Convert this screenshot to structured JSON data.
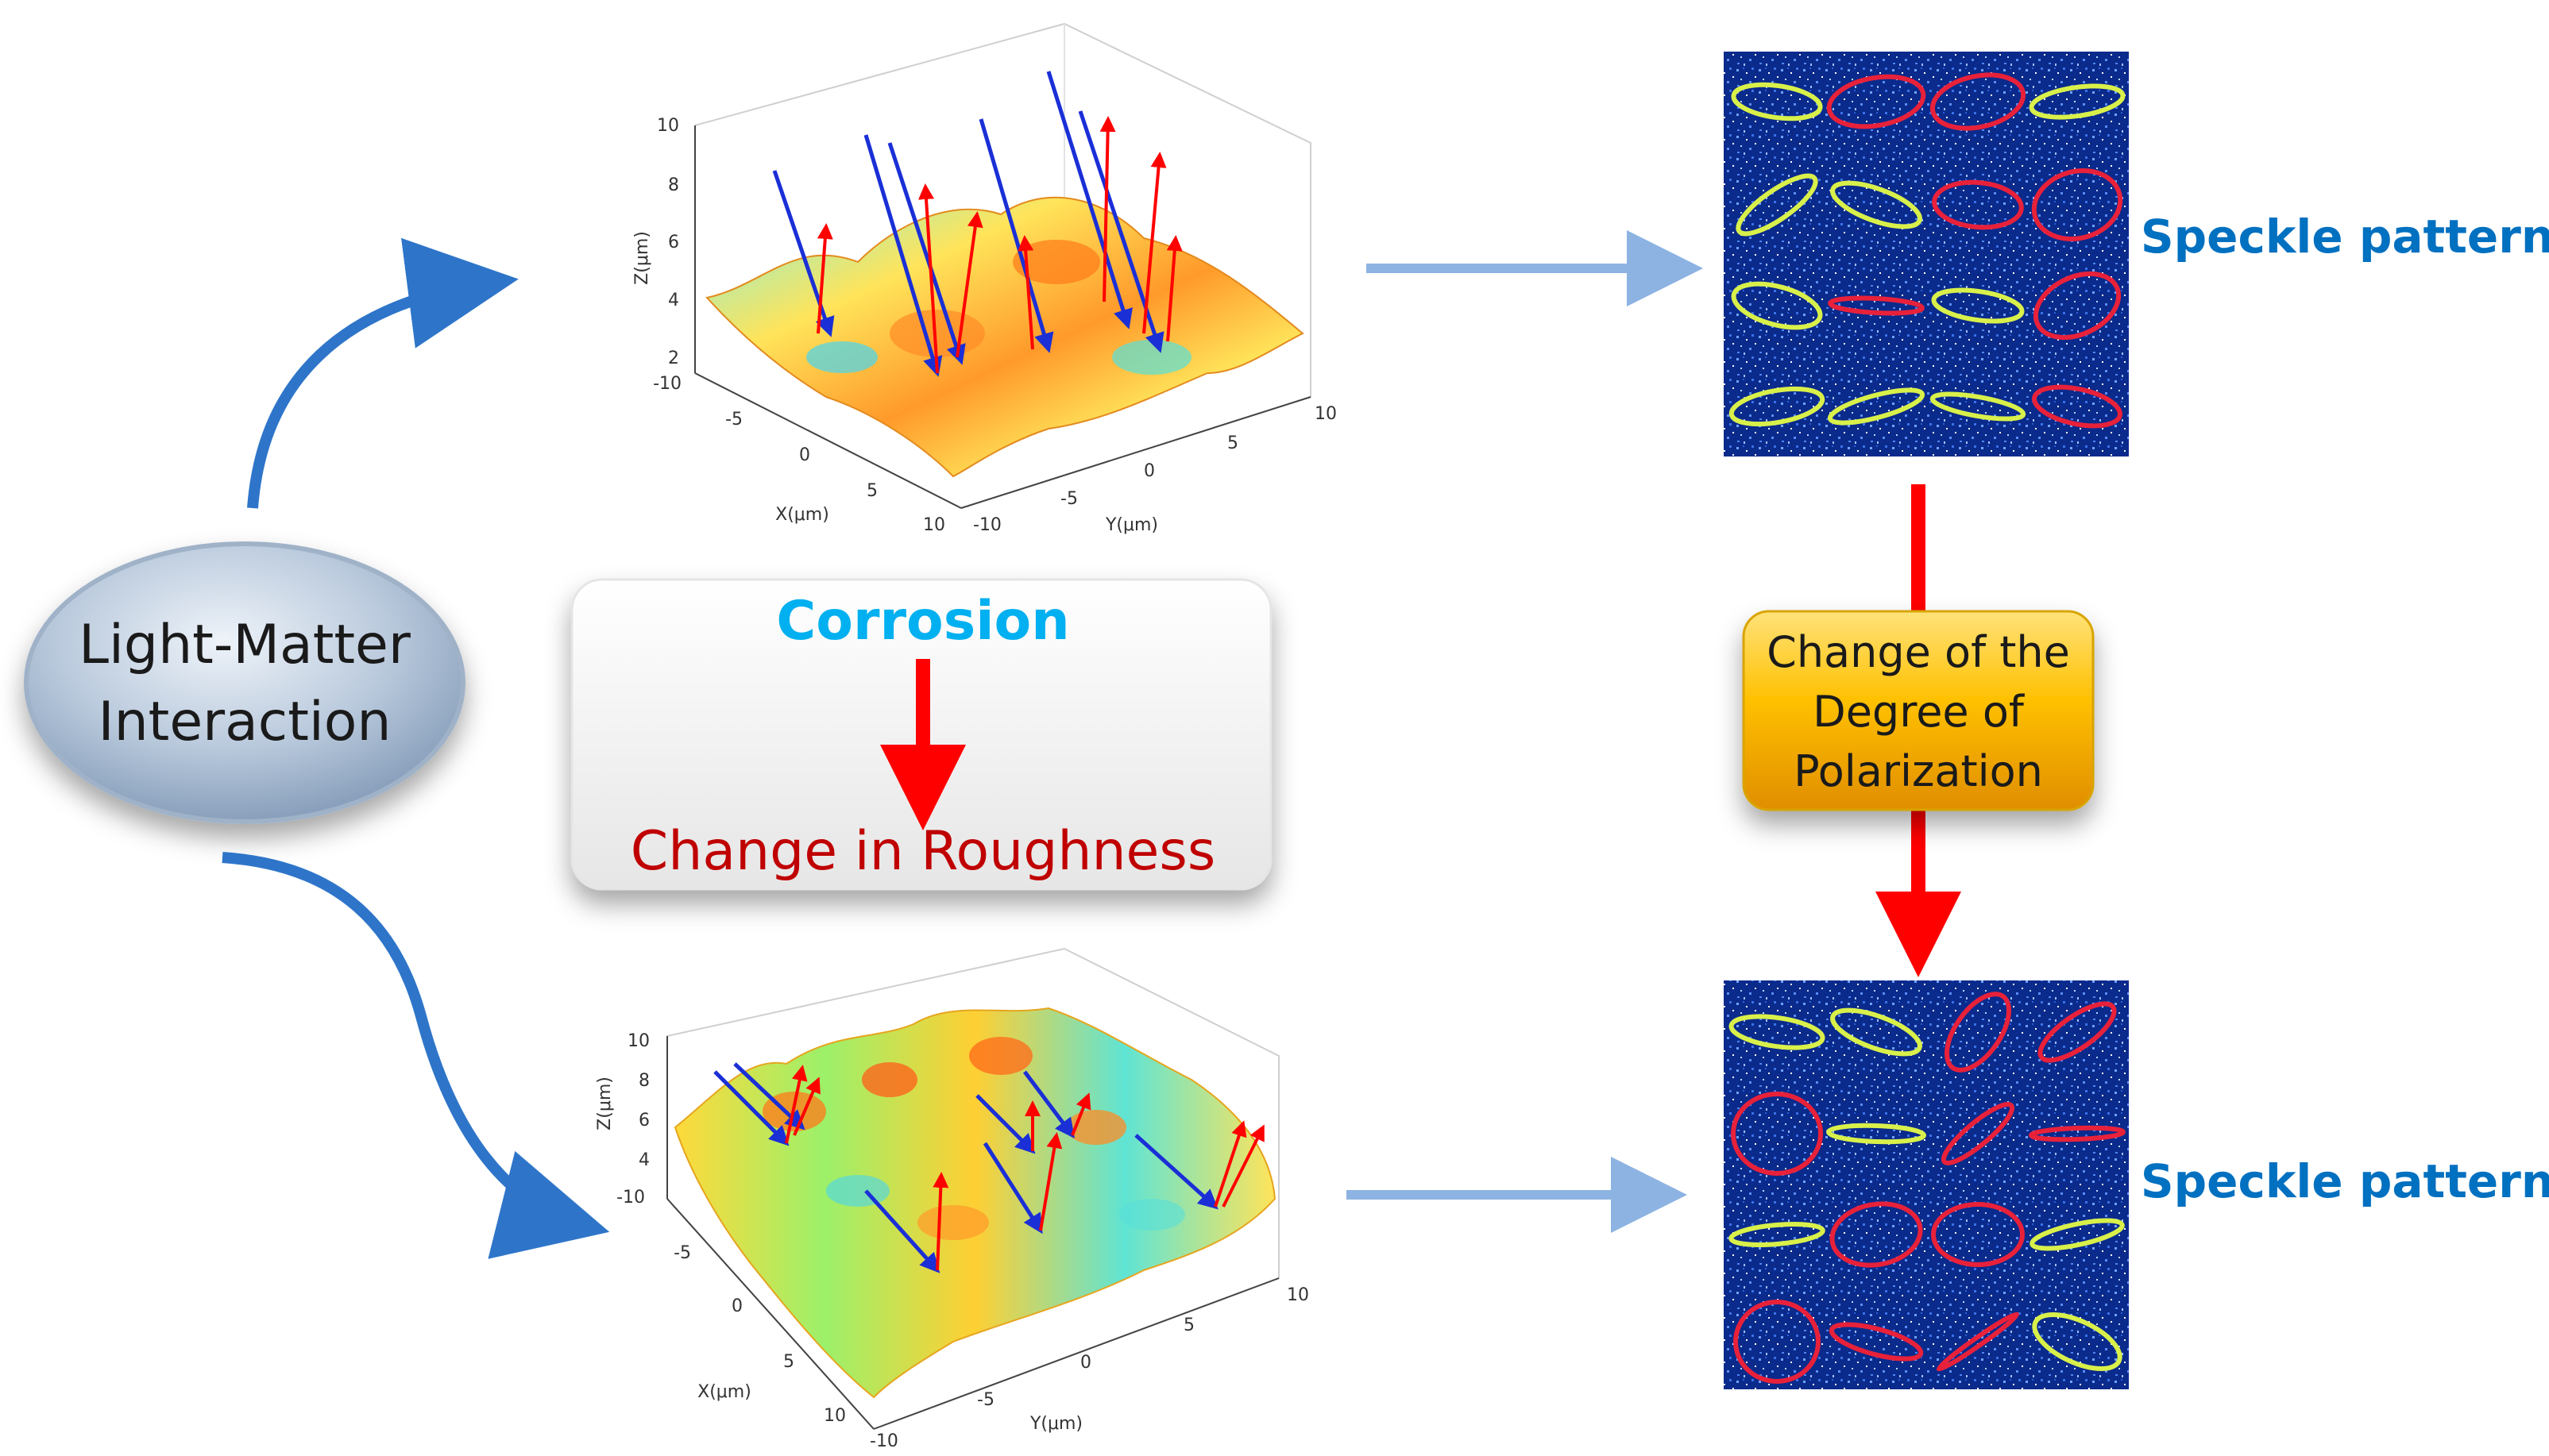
{
  "source_node": {
    "line1": "Light-Matter",
    "line2": "Interaction"
  },
  "process_box": {
    "title": "Corrosion",
    "result": "Change in Roughness"
  },
  "polarization_box": {
    "line1": "Change of the",
    "line2": "Degree of",
    "line3": "Polarization"
  },
  "speckle_labels": {
    "top": "Speckle pattern",
    "bottom": "Speckle pattern"
  },
  "plot_top": {
    "z_label": "Z(μm)",
    "x_label": "X(μm)",
    "y_label": "Y(μm)",
    "z_ticks": [
      "10",
      "8",
      "6",
      "4",
      "2"
    ],
    "x_ticks": [
      "-10",
      "-5",
      "0",
      "5",
      "10"
    ],
    "y_ticks": [
      "-10",
      "-5",
      "0",
      "5",
      "10"
    ]
  },
  "plot_bottom": {
    "z_label": "Z(μm)",
    "x_label": "X(μm)",
    "y_label": "Y(μm)",
    "z_ticks": [
      "10",
      "8",
      "6",
      "4"
    ],
    "x_ticks": [
      "-10",
      "-5",
      "0",
      "5",
      "10"
    ],
    "y_ticks": [
      "-10",
      "-5",
      "0",
      "5",
      "10"
    ]
  },
  "colors": {
    "flow_arrow": "#2e75c9",
    "light_arrow": "#8db3e2",
    "red_arrow": "#ff0000",
    "corrosion_text": "#00b0f0",
    "roughness_text": "#c00000",
    "speckle_text": "#0070c0",
    "ellipse_yellow": "#d9f04a",
    "ellipse_red": "#e8213a",
    "speckle_bg": "#0a2a8c"
  }
}
